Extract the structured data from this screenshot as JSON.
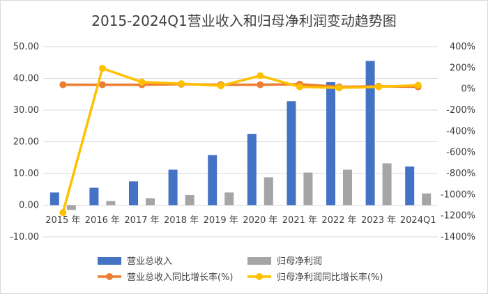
{
  "chart_data": {
    "type": "bar",
    "title": "2015-2024Q1营业收入和归母净利润变动趋势图",
    "categories": [
      "2015 年",
      "2016 年",
      "2017 年",
      "2018 年",
      "2019 年",
      "2020 年",
      "2021 年",
      "2022 年",
      "2023 年",
      "2024Q1"
    ],
    "y_left": {
      "min": -10,
      "max": 50,
      "step": 10,
      "tick_labels": [
        "-10.00",
        "0.00",
        "10.00",
        "20.00",
        "30.00",
        "40.00",
        "50.00"
      ]
    },
    "y_right": {
      "min": -1400,
      "max": 400,
      "step": 200,
      "tick_labels": [
        "-1400%",
        "-1200%",
        "-1000%",
        "-800%",
        "-600%",
        "-400%",
        "-200%",
        "0%",
        "200%",
        "400%"
      ]
    },
    "series": [
      {
        "name": "营业总收入",
        "kind": "bar",
        "axis": "left",
        "color": "#4472C4",
        "values": [
          4.0,
          5.5,
          7.5,
          11.2,
          15.8,
          22.5,
          32.8,
          38.8,
          45.5,
          12.2
        ]
      },
      {
        "name": "归母净利润",
        "kind": "bar",
        "axis": "left",
        "color": "#A5A5A5",
        "values": [
          -1.5,
          1.3,
          2.2,
          3.2,
          4.0,
          8.8,
          10.3,
          11.2,
          13.2,
          3.7
        ]
      },
      {
        "name": "营业总收入同比增长率(%)",
        "kind": "line",
        "axis": "right",
        "color": "#ED7D31",
        "values": [
          40,
          40,
          40,
          45,
          40,
          40,
          45,
          20,
          25,
          20
        ]
      },
      {
        "name": "归母净利润同比增长率(%)",
        "kind": "line",
        "axis": "right",
        "color": "#FFC000",
        "values": [
          -1170,
          195,
          65,
          50,
          30,
          125,
          20,
          10,
          20,
          35
        ]
      }
    ],
    "legend": {
      "position": "bottom"
    },
    "grid": true
  }
}
